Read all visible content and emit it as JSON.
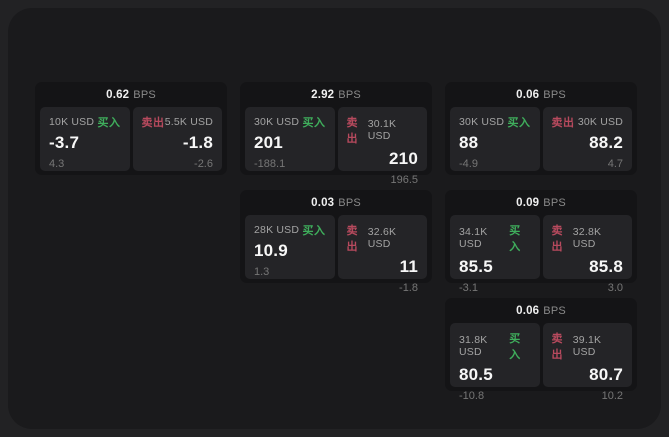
{
  "labels": {
    "bps_unit": "BPS",
    "buy": "买入",
    "sell": "卖出"
  },
  "colors": {
    "page_bg": "#222224",
    "surface_bg": "#1a1a1c",
    "card_bg": "#141416",
    "tile_bg": "#242427",
    "buy_green": "#3fae5c",
    "sell_red": "#b84a5e"
  },
  "cards": [
    {
      "bps": "0.62",
      "buy": {
        "amount": "10K USD",
        "value": "-3.7",
        "sub": "4.3"
      },
      "sell": {
        "amount": "5.5K USD",
        "value": "-1.8",
        "sub": "-2.6"
      }
    },
    {
      "bps": "2.92",
      "buy": {
        "amount": "30K USD",
        "value": "201",
        "sub": "-188.1"
      },
      "sell": {
        "amount": "30.1K USD",
        "value": "210",
        "sub": "196.5"
      }
    },
    {
      "bps": "0.06",
      "buy": {
        "amount": "30K USD",
        "value": "88",
        "sub": "-4.9"
      },
      "sell": {
        "amount": "30K USD",
        "value": "88.2",
        "sub": "4.7"
      }
    },
    {
      "bps": "0.03",
      "buy": {
        "amount": "28K USD",
        "value": "10.9",
        "sub": "1.3"
      },
      "sell": {
        "amount": "32.6K USD",
        "value": "11",
        "sub": "-1.8"
      }
    },
    {
      "bps": "0.09",
      "buy": {
        "amount": "34.1K USD",
        "value": "85.5",
        "sub": "-3.1"
      },
      "sell": {
        "amount": "32.8K USD",
        "value": "85.8",
        "sub": "3.0"
      }
    },
    {
      "bps": "0.06",
      "buy": {
        "amount": "31.8K USD",
        "value": "80.5",
        "sub": "-10.8"
      },
      "sell": {
        "amount": "39.1K USD",
        "value": "80.7",
        "sub": "10.2"
      }
    }
  ]
}
